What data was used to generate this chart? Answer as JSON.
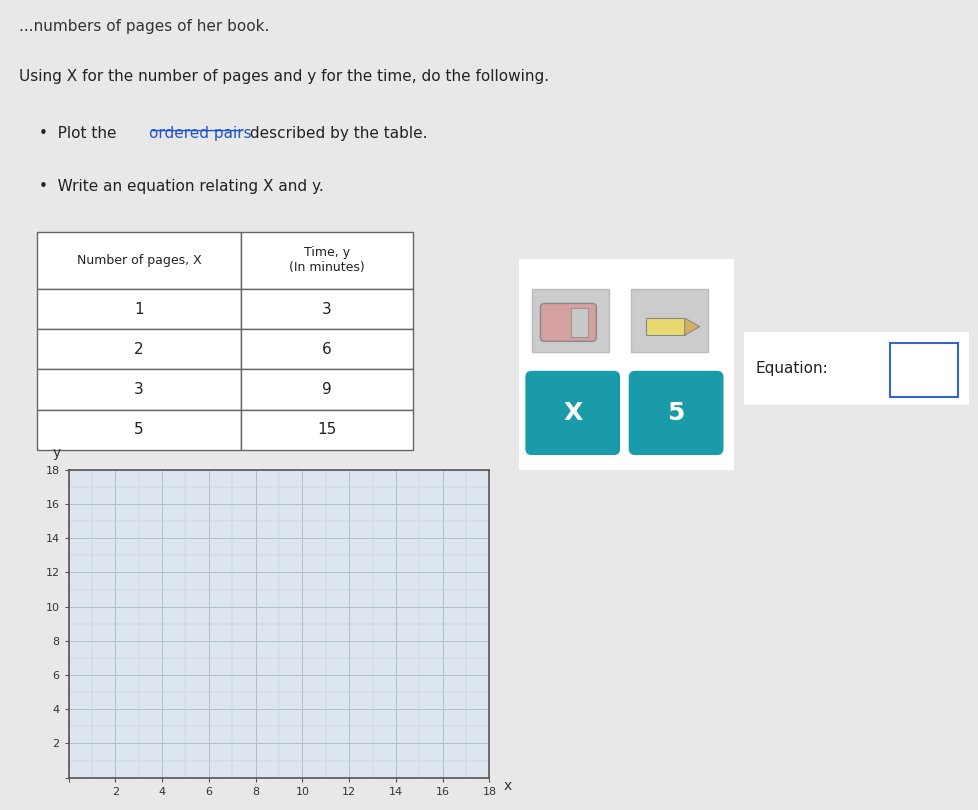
{
  "page_title_partial": "...numbers of pages of her book.",
  "intro_text": "Using X for the number of pages and y for the time, do the following.",
  "bullet1a": "•  Plot the ",
  "bullet1b": "ordered pairs",
  "bullet1c": " described by the table.",
  "bullet2": "•  Write an equation relating X and y.",
  "table_col1_header": "Number of pages, X",
  "table_col2_header": "Time, y\n(In minutes)",
  "table_data": [
    [
      1,
      3
    ],
    [
      2,
      6
    ],
    [
      3,
      9
    ],
    [
      5,
      15
    ]
  ],
  "graph_xlim": [
    0,
    18
  ],
  "graph_ylim": [
    0,
    18
  ],
  "graph_xticks": [
    0,
    2,
    4,
    6,
    8,
    10,
    12,
    14,
    16,
    18
  ],
  "graph_yticks": [
    0,
    2,
    4,
    6,
    8,
    10,
    12,
    14,
    16,
    18
  ],
  "graph_xlabel": "x",
  "graph_ylabel": "y",
  "equation_label": "Equation:",
  "background_color": "#e8e8e8",
  "graph_bg_color": "#dde6ee",
  "grid_color_minor": "#c0ccd8",
  "grid_color_major": "#b0bfcc",
  "axis_color": "#555555",
  "table_border_color": "#666666",
  "teal_color": "#1a9baa",
  "button_x_label": "X",
  "button_5_label": "5",
  "link_color": "#2255cc"
}
